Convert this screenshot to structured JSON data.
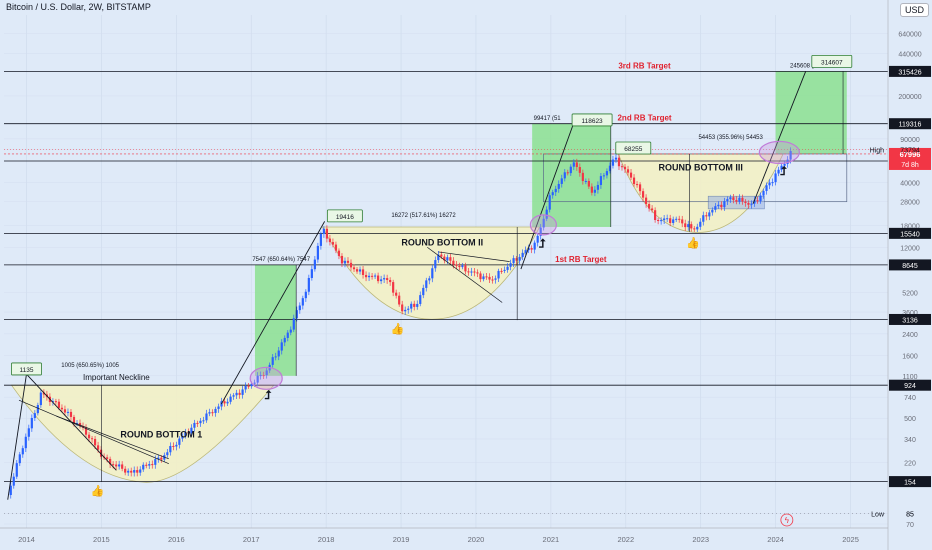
{
  "header": {
    "title": "Bitcoin / U.S. Dollar, 2W, BITSTAMP"
  },
  "currency": "USD",
  "colors": {
    "up": "#2962ff",
    "down": "#f23645",
    "bowl": "#f3f1c6",
    "zone": "#86e08a",
    "purple": "#c07bd8",
    "bg": "#dfeaf8"
  },
  "chart_data": {
    "type": "candlestick",
    "x_axis": {
      "ticks": [
        "2014",
        "2015",
        "2016",
        "2017",
        "2018",
        "2019",
        "2020",
        "2021",
        "2022",
        "2023",
        "2024",
        "2025"
      ],
      "range": [
        2013.7,
        2025.5
      ]
    },
    "y_axis": {
      "scale": "log",
      "range": [
        65,
        900000
      ],
      "ticks": [
        70,
        85,
        154,
        220,
        340,
        500,
        740,
        924,
        1100,
        1600,
        2400,
        3136,
        3600,
        5200,
        8645,
        12000,
        15540,
        18000,
        28000,
        40000,
        59687,
        67996,
        73794,
        90000,
        119316,
        200000,
        315426,
        440000,
        640000
      ]
    },
    "price_levels": [
      {
        "value": 924,
        "label": "924"
      },
      {
        "value": 154,
        "label": "154"
      },
      {
        "value": 3136,
        "label": "3136"
      },
      {
        "value": 8645,
        "label": "8645",
        "text": "1st RB Target"
      },
      {
        "value": 15540,
        "label": "15540"
      },
      {
        "value": 59687,
        "label": "59687"
      },
      {
        "value": 119316,
        "label": "119316",
        "text": "2nd RB Target"
      },
      {
        "value": 315426,
        "label": "315426",
        "text": "3rd RB Target"
      }
    ],
    "current_price": {
      "value": 67996,
      "label": "67996",
      "countdown": "7d 8h"
    },
    "high": {
      "value": 73794,
      "label": "High",
      "price": "73794"
    },
    "low": {
      "value": 85,
      "label": "Low",
      "price": "85"
    },
    "patterns": [
      {
        "name": "ROUND BOTTOM 1",
        "neckline": "Important Neckline"
      },
      {
        "name": "ROUND BOTTOM II"
      },
      {
        "name": "ROUND BOTTOM III"
      }
    ],
    "callouts": [
      "1135",
      "19416",
      "118623",
      "68255",
      "314607"
    ],
    "measurements": [
      "1005 (650.65%) 1005",
      "7547 (650.64%) 7547",
      "16272 (517.61%) 16272",
      "99417 (51",
      "54453 (355.96%) 54453",
      "245608 (355.9"
    ],
    "series": [
      {
        "name": "BTCUSD",
        "x": [
          2013.75,
          2013.95,
          2014.2,
          2014.5,
          2014.8,
          2015.05,
          2015.4,
          2015.8,
          2016.2,
          2016.6,
          2016.95,
          2017.2,
          2017.5,
          2017.75,
          2017.95,
          2018.2,
          2018.5,
          2018.85,
          2019.0,
          2019.2,
          2019.5,
          2019.8,
          2020.2,
          2020.5,
          2020.8,
          2021.0,
          2021.3,
          2021.55,
          2021.85,
          2022.1,
          2022.4,
          2022.7,
          2022.9,
          2023.1,
          2023.4,
          2023.7,
          2023.95,
          2024.2
        ],
        "y": [
          120,
          300,
          800,
          580,
          380,
          230,
          180,
          240,
          420,
          650,
          900,
          1200,
          2500,
          5800,
          17000,
          9500,
          7200,
          6400,
          3700,
          4100,
          10500,
          8200,
          6500,
          9300,
          13000,
          32000,
          58000,
          33000,
          63000,
          42000,
          20000,
          20000,
          16500,
          23000,
          30000,
          26500,
          42000,
          67996
        ]
      }
    ]
  }
}
